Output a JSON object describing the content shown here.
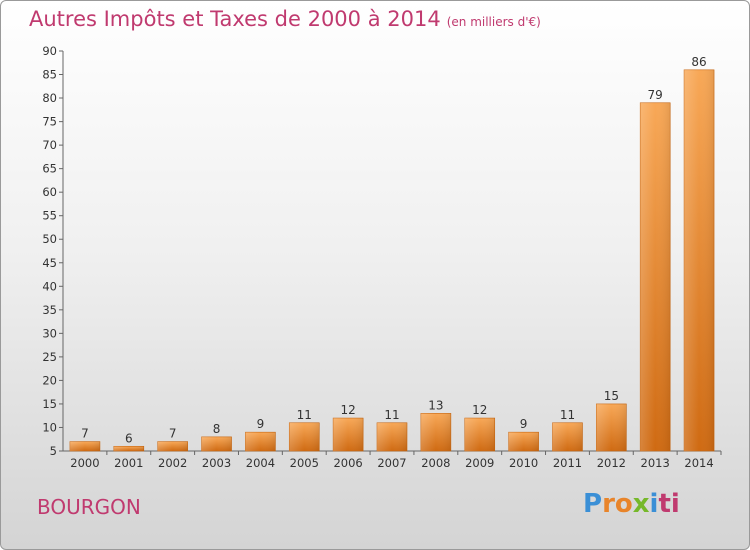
{
  "title": "Autres Impôts et Taxes de 2000 à 2014",
  "unit": "(en milliers d'€)",
  "commune": "BOURGON",
  "logo": {
    "text": "Proxiti",
    "letters": [
      "P",
      "r",
      "o",
      "x",
      "i",
      "ti"
    ]
  },
  "colors": {
    "title": "#c03a6f",
    "bar_light": "#f7a552",
    "bar_dark": "#d06a10"
  },
  "chart_data": {
    "type": "bar",
    "title": "Autres Impôts et Taxes de 2000 à 2014",
    "subtitle": "(en milliers d'€)",
    "categories": [
      "2000",
      "2001",
      "2002",
      "2003",
      "2004",
      "2005",
      "2006",
      "2007",
      "2008",
      "2009",
      "2010",
      "2011",
      "2012",
      "2013",
      "2014"
    ],
    "values": [
      7,
      6,
      7,
      8,
      9,
      11,
      12,
      11,
      13,
      12,
      9,
      11,
      15,
      79,
      86
    ],
    "ylim": [
      5,
      90
    ],
    "yticks": [
      5,
      10,
      15,
      20,
      25,
      30,
      35,
      40,
      45,
      50,
      55,
      60,
      65,
      70,
      75,
      80,
      85,
      90
    ],
    "grid": false
  }
}
